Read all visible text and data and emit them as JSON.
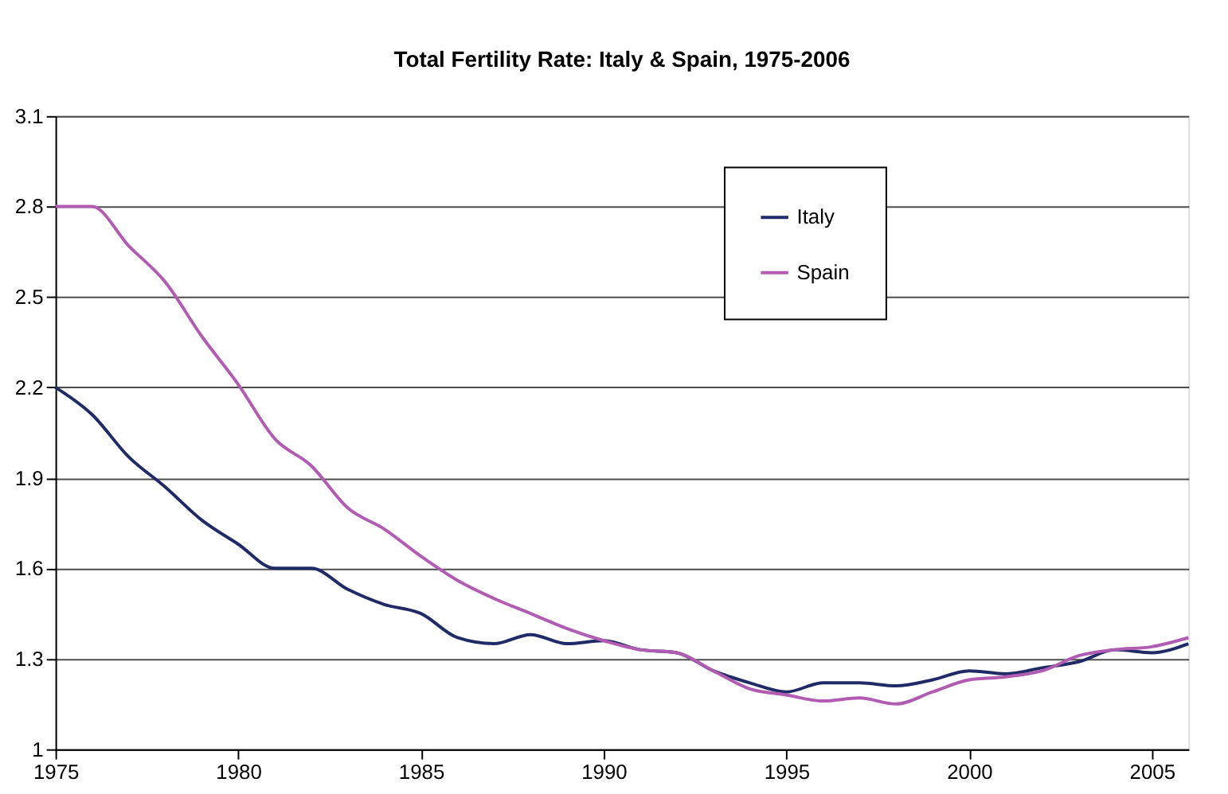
{
  "chart_data": {
    "type": "line",
    "title": "Total Fertility Rate: Italy & Spain, 1975-2006",
    "x": [
      1975,
      1976,
      1977,
      1978,
      1979,
      1980,
      1981,
      1982,
      1983,
      1984,
      1985,
      1986,
      1987,
      1988,
      1989,
      1990,
      1991,
      1992,
      1993,
      1994,
      1995,
      1996,
      1997,
      1998,
      1999,
      2000,
      2001,
      2002,
      2003,
      2004,
      2005,
      2006
    ],
    "series": [
      {
        "name": "Italy",
        "color": "#1f2a66",
        "values": [
          2.2,
          2.11,
          1.97,
          1.87,
          1.76,
          1.68,
          1.6,
          1.6,
          1.53,
          1.48,
          1.45,
          1.37,
          1.35,
          1.38,
          1.35,
          1.36,
          1.33,
          1.32,
          1.26,
          1.22,
          1.19,
          1.22,
          1.22,
          1.21,
          1.23,
          1.26,
          1.25,
          1.27,
          1.29,
          1.33,
          1.32,
          1.35
        ]
      },
      {
        "name": "Spain",
        "color": "#b15bb3",
        "values": [
          2.8,
          2.8,
          2.67,
          2.55,
          2.37,
          2.21,
          2.03,
          1.94,
          1.8,
          1.73,
          1.64,
          1.56,
          1.5,
          1.45,
          1.4,
          1.36,
          1.33,
          1.32,
          1.26,
          1.2,
          1.18,
          1.16,
          1.17,
          1.15,
          1.19,
          1.23,
          1.24,
          1.26,
          1.31,
          1.33,
          1.34,
          1.37
        ]
      }
    ],
    "xlim": [
      1975,
      2006
    ],
    "xticks": [
      1975,
      1980,
      1985,
      1990,
      1995,
      2000,
      2005
    ],
    "ylim": [
      1,
      3.1
    ],
    "yticks": [
      1,
      1.3,
      1.6,
      1.9,
      2.2,
      2.5,
      2.8,
      3.1
    ],
    "grid": "y",
    "legend": "top right",
    "marker": "none",
    "line_style": "solid"
  }
}
